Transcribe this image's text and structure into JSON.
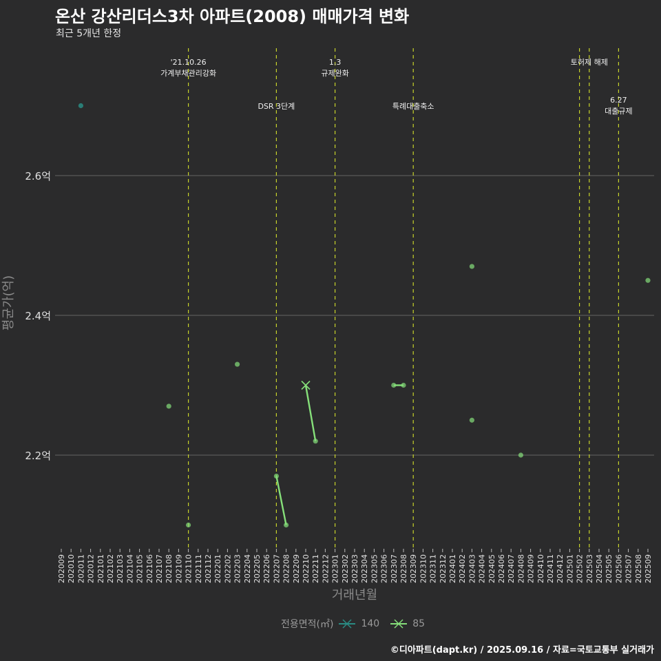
{
  "title": "온산 강산리더스3차 아파트(2008) 매매가격 변화",
  "subtitle": "최근 5개년 한정",
  "caption": "©디아파트(dapt.kr) / 2025.09.16 / 자료=국토교통부 실거래가",
  "chart_data": {
    "type": "line",
    "xlabel": "거래년월",
    "ylabel": "평균가(억)",
    "x": [
      "202009",
      "202010",
      "202011",
      "202012",
      "202101",
      "202102",
      "202103",
      "202104",
      "202105",
      "202106",
      "202107",
      "202108",
      "202109",
      "202110",
      "202111",
      "202112",
      "202201",
      "202202",
      "202203",
      "202204",
      "202205",
      "202206",
      "202207",
      "202208",
      "202209",
      "202210",
      "202211",
      "202212",
      "202301",
      "202302",
      "202303",
      "202304",
      "202305",
      "202306",
      "202307",
      "202308",
      "202309",
      "202310",
      "202311",
      "202312",
      "202401",
      "202402",
      "202403",
      "202404",
      "202405",
      "202406",
      "202407",
      "202408",
      "202409",
      "202410",
      "202411",
      "202412",
      "202501",
      "202502",
      "202503",
      "202504",
      "202505",
      "202506",
      "202507",
      "202508",
      "202509"
    ],
    "ylim": [
      2.06,
      2.8
    ],
    "yticks": [
      {
        "v": 2.2,
        "label": "2.2억"
      },
      {
        "v": 2.4,
        "label": "2.4억"
      },
      {
        "v": 2.6,
        "label": "2.6억"
      }
    ],
    "grid": true,
    "legend": {
      "title": "전용면적(㎡)",
      "placement": "bottom"
    },
    "series": [
      {
        "name": "140",
        "color": "#2a8c84",
        "points": [
          {
            "x": "202011",
            "y": 2.7
          }
        ],
        "segments": []
      },
      {
        "name": "85",
        "color": "#86e07a",
        "points": [
          {
            "x": "202108",
            "y": 2.27
          },
          {
            "x": "202110",
            "y": 2.1
          },
          {
            "x": "202203",
            "y": 2.33
          },
          {
            "x": "202207",
            "y": 2.17
          },
          {
            "x": "202208",
            "y": 2.1
          },
          {
            "x": "202210",
            "y": 2.3,
            "marker": "x"
          },
          {
            "x": "202211",
            "y": 2.22
          },
          {
            "x": "202307",
            "y": 2.3
          },
          {
            "x": "202308",
            "y": 2.3
          },
          {
            "x": "202403",
            "y": 2.47
          },
          {
            "x": "202403",
            "y": 2.25
          },
          {
            "x": "202408",
            "y": 2.2
          },
          {
            "x": "202509",
            "y": 2.45
          }
        ],
        "segments": [
          [
            3,
            4
          ],
          [
            5,
            6
          ],
          [
            7,
            8
          ]
        ]
      }
    ],
    "events": [
      {
        "x": "202110",
        "lines": [
          "'21.10.26",
          "가계부채관리강화"
        ],
        "row": 0
      },
      {
        "x": "202207",
        "lines": [
          "DSR 3단계"
        ],
        "row": 1
      },
      {
        "x": "202301",
        "lines": [
          "1.3",
          "규제완화"
        ],
        "row": 0
      },
      {
        "x": "202309",
        "lines": [
          "특례대출축소"
        ],
        "row": 1
      },
      {
        "x": "202502",
        "lines": [],
        "row": 0
      },
      {
        "x": "202503",
        "lines": [
          "토허제 해제"
        ],
        "row": 0
      },
      {
        "x": "202506",
        "lines": [
          "6.27",
          "대출규제"
        ],
        "row": 2
      }
    ]
  }
}
